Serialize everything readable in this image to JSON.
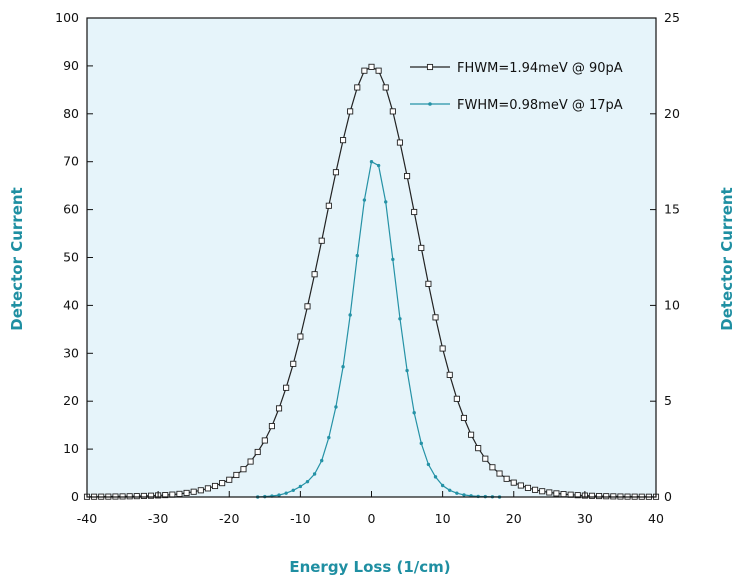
{
  "chart_data": {
    "type": "line",
    "title": "",
    "xlabel": "Energy Loss (1/cm)",
    "ylabel_left": "Detector Current",
    "ylabel_right": "Detector Current",
    "xlim": [
      -40,
      40
    ],
    "ylim_left": [
      0,
      100
    ],
    "ylim_right": [
      0,
      25
    ],
    "x_ticks": [
      "-40",
      "-30",
      "-20",
      "-10",
      "0",
      "10",
      "20",
      "30",
      "40"
    ],
    "y_ticks_left": [
      "0",
      "10",
      "20",
      "30",
      "40",
      "50",
      "60",
      "70",
      "80",
      "90",
      "100"
    ],
    "y_ticks_right": [
      "0",
      "5",
      "10",
      "15",
      "20",
      "25"
    ],
    "grid": false,
    "legend_position": "top-right",
    "plot_background": "#e6f4fa",
    "series": [
      {
        "name": "FHWM=1.94meV @ 90pA",
        "axis": "left",
        "color": "#222222",
        "marker": "square",
        "x": [
          -40,
          -39,
          -38,
          -37,
          -36,
          -35,
          -34,
          -33,
          -32,
          -31,
          -30,
          -29,
          -28,
          -27,
          -26,
          -25,
          -24,
          -23,
          -22,
          -21,
          -20,
          -19,
          -18,
          -17,
          -16,
          -15,
          -14,
          -13,
          -12,
          -11,
          -10,
          -9,
          -8,
          -7,
          -6,
          -5,
          -4,
          -3,
          -2,
          -1,
          0,
          1,
          2,
          3,
          4,
          5,
          6,
          7,
          8,
          9,
          10,
          11,
          12,
          13,
          14,
          15,
          16,
          17,
          18,
          19,
          20,
          21,
          22,
          23,
          24,
          25,
          26,
          27,
          28,
          29,
          30,
          31,
          32,
          33,
          34,
          35,
          36,
          37,
          38,
          39,
          40
        ],
        "y": [
          0.05,
          0.06,
          0.07,
          0.08,
          0.1,
          0.12,
          0.15,
          0.18,
          0.22,
          0.27,
          0.33,
          0.4,
          0.5,
          0.65,
          0.85,
          1.1,
          1.4,
          1.8,
          2.3,
          2.9,
          3.6,
          4.6,
          5.8,
          7.4,
          9.4,
          11.8,
          14.8,
          18.5,
          22.8,
          27.8,
          33.5,
          39.8,
          46.5,
          53.5,
          60.8,
          67.8,
          74.5,
          80.5,
          85.5,
          89,
          89.8,
          89,
          85.5,
          80.5,
          74,
          67,
          59.5,
          52,
          44.5,
          37.5,
          31,
          25.5,
          20.5,
          16.5,
          13,
          10.2,
          8,
          6.2,
          4.9,
          3.8,
          3,
          2.4,
          1.9,
          1.5,
          1.2,
          0.95,
          0.75,
          0.6,
          0.48,
          0.38,
          0.3,
          0.25,
          0.2,
          0.16,
          0.13,
          0.1,
          0.08,
          0.07,
          0.06,
          0.05,
          0.05
        ]
      },
      {
        "name": "FWHM=0.98meV @ 17pA",
        "axis": "right",
        "color": "#2592a6",
        "marker": "dot",
        "x": [
          -16,
          -15,
          -14,
          -13,
          -12,
          -11,
          -10,
          -9,
          -8,
          -7,
          -6,
          -5,
          -4,
          -3,
          -2,
          -1,
          0,
          1,
          2,
          3,
          4,
          5,
          6,
          7,
          8,
          9,
          10,
          11,
          12,
          13,
          14,
          15,
          16,
          17,
          18
        ],
        "y": [
          0,
          0.02,
          0.05,
          0.1,
          0.2,
          0.35,
          0.55,
          0.8,
          1.2,
          1.9,
          3.1,
          4.7,
          6.8,
          9.5,
          12.6,
          15.5,
          17.5,
          17.3,
          15.4,
          12.4,
          9.3,
          6.6,
          4.4,
          2.8,
          1.7,
          1.05,
          0.6,
          0.35,
          0.2,
          0.11,
          0.06,
          0.03,
          0.02,
          0.01,
          0
        ]
      }
    ]
  }
}
